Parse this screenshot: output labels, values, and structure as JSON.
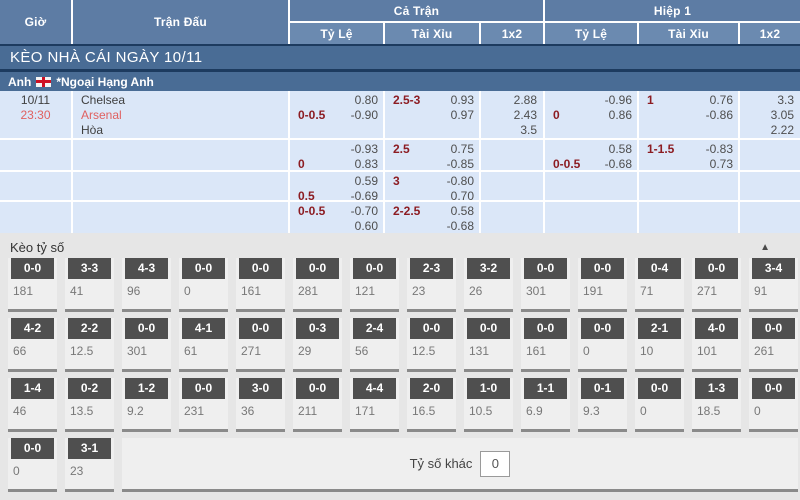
{
  "colors": {
    "header_blue": "#5d7ca4",
    "subheader_blue": "#6b8ab0",
    "bar_blue": "#496c95",
    "navy_separator": "#1d3b5f",
    "row_bg": "#dbe7f8",
    "handicap_red": "#8c1c22",
    "odds_gray": "#4e4e4e",
    "team_red": "#e06060",
    "score_box": "#4f4f4f",
    "score_section_bg": "#e6e6e6"
  },
  "header": {
    "col_time": "Giờ",
    "col_match": "Trận Đấu",
    "group_full": "Cả Trận",
    "group_half": "Hiệp 1",
    "sub": {
      "rate": "Tỷ Lệ",
      "overunder": "Tài Xỉu",
      "x12": "1x2"
    }
  },
  "banner": {
    "title": "KÈO NHÀ CÁI NGÀY 10/11"
  },
  "league": {
    "country": "Anh",
    "flag": "england-flag",
    "name": "*Ngoại Hạng Anh"
  },
  "match": {
    "date": "10/11",
    "time": "23:30",
    "home": "Chelsea",
    "away": "Arsenal",
    "draw_label": "Hòa"
  },
  "odds_rows": [
    {
      "full_hdp": {
        "hdp": "0-0.5",
        "pos": 2,
        "o1": "0.80",
        "o2": "-0.90"
      },
      "full_ou": {
        "hdp": "2.5-3",
        "pos": 1,
        "o1": "0.93",
        "o2": "0.97"
      },
      "full_1x2": [
        "2.88",
        "2.43",
        "3.5"
      ],
      "half_hdp": {
        "hdp": "0",
        "pos": 2,
        "o1": "-0.96",
        "o2": "0.86"
      },
      "half_ou": {
        "hdp": "1",
        "pos": 1,
        "o1": "0.76",
        "o2": "-0.86"
      },
      "half_1x2": [
        "3.3",
        "3.05",
        "2.22"
      ]
    },
    {
      "full_hdp": {
        "hdp": "0",
        "pos": 2,
        "o1": "-0.93",
        "o2": "0.83"
      },
      "full_ou": {
        "hdp": "2.5",
        "pos": 1,
        "o1": "0.75",
        "o2": "-0.85"
      },
      "full_1x2": [],
      "half_hdp": {
        "hdp": "0-0.5",
        "pos": 2,
        "o1": "0.58",
        "o2": "-0.68"
      },
      "half_ou": {
        "hdp": "1-1.5",
        "pos": 1,
        "o1": "-0.83",
        "o2": "0.73"
      },
      "half_1x2": []
    },
    {
      "full_hdp": {
        "hdp": "0.5",
        "pos": 2,
        "o1": "0.59",
        "o2": "-0.69"
      },
      "full_ou": {
        "hdp": "3",
        "pos": 1,
        "o1": "-0.80",
        "o2": "0.70"
      },
      "full_1x2": [],
      "half_hdp": null,
      "half_ou": null,
      "half_1x2": []
    },
    {
      "full_hdp": {
        "hdp": "0-0.5",
        "pos": 1,
        "o1": "-0.70",
        "o2": "0.60"
      },
      "full_ou": {
        "hdp": "2-2.5",
        "pos": 1,
        "o1": "0.58",
        "o2": "-0.68"
      },
      "full_1x2": [],
      "half_hdp": null,
      "half_ou": null,
      "half_1x2": []
    }
  ],
  "score_section": {
    "title": "Kèo tỷ số",
    "collapse_icon": "▲",
    "rows": [
      [
        [
          "0-0",
          "181"
        ],
        [
          "3-3",
          "41"
        ],
        [
          "4-3",
          "96"
        ],
        [
          "0-0",
          "0"
        ],
        [
          "0-0",
          "161"
        ],
        [
          "0-0",
          "281"
        ],
        [
          "0-0",
          "121"
        ],
        [
          "2-3",
          "23"
        ],
        [
          "3-2",
          "26"
        ],
        [
          "0-0",
          "301"
        ],
        [
          "0-0",
          "191"
        ],
        [
          "0-4",
          "71"
        ],
        [
          "0-0",
          "271"
        ],
        [
          "3-4",
          "91"
        ]
      ],
      [
        [
          "4-2",
          "66"
        ],
        [
          "2-2",
          "12.5"
        ],
        [
          "0-0",
          "301"
        ],
        [
          "4-1",
          "61"
        ],
        [
          "0-0",
          "271"
        ],
        [
          "0-3",
          "29"
        ],
        [
          "2-4",
          "56"
        ],
        [
          "0-0",
          "12.5"
        ],
        [
          "0-0",
          "131"
        ],
        [
          "0-0",
          "161"
        ],
        [
          "0-0",
          "0"
        ],
        [
          "2-1",
          "10"
        ],
        [
          "4-0",
          "101"
        ],
        [
          "0-0",
          "261"
        ]
      ],
      [
        [
          "1-4",
          "46"
        ],
        [
          "0-2",
          "13.5"
        ],
        [
          "1-2",
          "9.2"
        ],
        [
          "0-0",
          "231"
        ],
        [
          "3-0",
          "36"
        ],
        [
          "0-0",
          "211"
        ],
        [
          "4-4",
          "171"
        ],
        [
          "2-0",
          "16.5"
        ],
        [
          "1-0",
          "10.5"
        ],
        [
          "1-1",
          "6.9"
        ],
        [
          "0-1",
          "9.3"
        ],
        [
          "0-0",
          "0"
        ],
        [
          "1-3",
          "18.5"
        ],
        [
          "0-0",
          "0"
        ]
      ]
    ],
    "last_row": [
      [
        "0-0",
        "0"
      ],
      [
        "3-1",
        "23"
      ]
    ],
    "other_label": "Tỷ số khác",
    "other_value": "0"
  }
}
